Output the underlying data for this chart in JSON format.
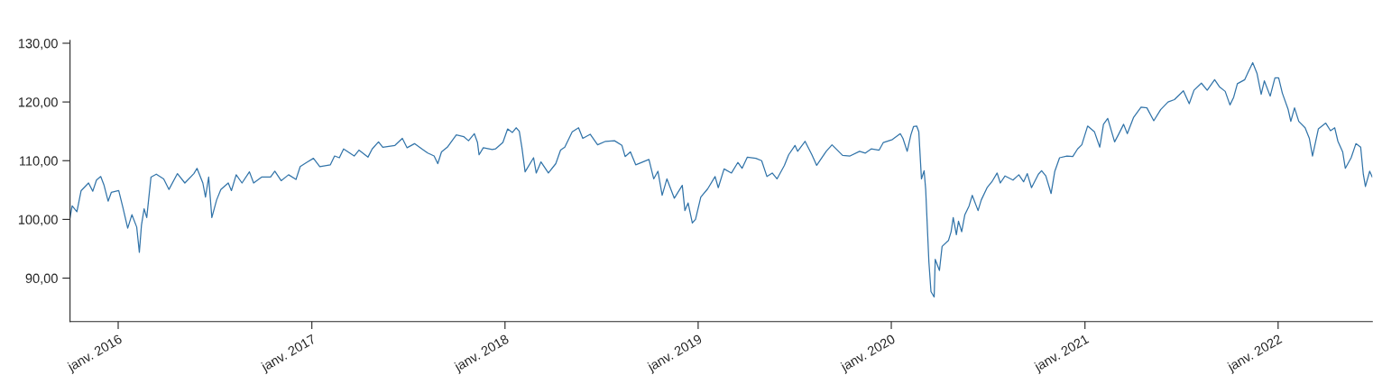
{
  "chart_data": {
    "type": "line",
    "x": [
      "2015-10-02",
      "2015-10-06",
      "2015-10-15",
      "2015-10-23",
      "2015-11-06",
      "2015-11-14",
      "2015-11-21",
      "2015-11-29",
      "2015-12-05",
      "2015-12-13",
      "2015-12-19",
      "2016-01-02",
      "2016-01-10",
      "2016-01-19",
      "2016-01-27",
      "2016-02-05",
      "2016-02-10",
      "2016-02-14",
      "2016-02-19",
      "2016-02-24",
      "2016-03-03",
      "2016-03-13",
      "2016-03-27",
      "2016-04-06",
      "2016-04-22",
      "2016-05-06",
      "2016-05-23",
      "2016-05-29",
      "2016-06-09",
      "2016-06-14",
      "2016-06-20",
      "2016-06-26",
      "2016-07-05",
      "2016-07-13",
      "2016-07-27",
      "2016-08-02",
      "2016-08-11",
      "2016-08-22",
      "2016-09-05",
      "2016-09-13",
      "2016-09-28",
      "2016-10-15",
      "2016-10-23",
      "2016-11-04",
      "2016-11-18",
      "2016-12-02",
      "2016-12-10",
      "2016-12-22",
      "2017-01-04",
      "2017-01-16",
      "2017-02-05",
      "2017-02-13",
      "2017-02-22",
      "2017-03-02",
      "2017-03-22",
      "2017-03-31",
      "2017-04-17",
      "2017-04-25",
      "2017-05-07",
      "2017-05-15",
      "2017-06-07",
      "2017-06-21",
      "2017-06-30",
      "2017-07-14",
      "2017-07-28",
      "2017-08-08",
      "2017-08-20",
      "2017-08-27",
      "2017-09-03",
      "2017-09-14",
      "2017-10-01",
      "2017-10-15",
      "2017-10-24",
      "2017-11-04",
      "2017-11-10",
      "2017-11-13",
      "2017-11-21",
      "2017-12-08",
      "2017-12-14",
      "2017-12-28",
      "2018-01-06",
      "2018-01-15",
      "2018-01-22",
      "2018-01-28",
      "2018-02-02",
      "2018-02-08",
      "2018-02-24",
      "2018-03-01",
      "2018-03-10",
      "2018-03-24",
      "2018-04-07",
      "2018-04-16",
      "2018-04-24",
      "2018-05-08",
      "2018-05-20",
      "2018-05-28",
      "2018-06-11",
      "2018-06-25",
      "2018-07-10",
      "2018-07-27",
      "2018-08-10",
      "2018-08-16",
      "2018-08-26",
      "2018-09-05",
      "2018-09-30",
      "2018-10-09",
      "2018-10-17",
      "2018-10-25",
      "2018-11-03",
      "2018-11-17",
      "2018-12-02",
      "2018-12-07",
      "2018-12-13",
      "2018-12-21",
      "2018-12-27",
      "2019-01-06",
      "2019-01-19",
      "2019-02-02",
      "2019-02-08",
      "2019-02-19",
      "2019-03-05",
      "2019-03-17",
      "2019-03-25",
      "2019-04-04",
      "2019-04-20",
      "2019-05-01",
      "2019-05-11",
      "2019-05-21",
      "2019-05-30",
      "2019-06-13",
      "2019-06-21",
      "2019-07-03",
      "2019-07-08",
      "2019-07-22",
      "2019-08-04",
      "2019-08-13",
      "2019-08-31",
      "2019-09-11",
      "2019-10-01",
      "2019-10-15",
      "2019-11-02",
      "2019-11-13",
      "2019-11-24",
      "2019-12-09",
      "2019-12-17",
      "2020-01-03",
      "2020-01-18",
      "2020-01-23",
      "2020-01-31",
      "2020-02-07",
      "2020-02-12",
      "2020-02-18",
      "2020-02-22",
      "2020-02-27",
      "2020-03-03",
      "2020-03-06",
      "2020-03-12",
      "2020-03-16",
      "2020-03-22",
      "2020-03-24",
      "2020-04-01",
      "2020-04-06",
      "2020-04-18",
      "2020-04-23",
      "2020-04-27",
      "2020-05-03",
      "2020-05-07",
      "2020-05-13",
      "2020-05-19",
      "2020-05-27",
      "2020-06-02",
      "2020-06-13",
      "2020-06-19",
      "2020-06-30",
      "2020-07-09",
      "2020-07-19",
      "2020-07-25",
      "2020-08-03",
      "2020-08-18",
      "2020-08-29",
      "2020-09-07",
      "2020-09-14",
      "2020-09-22",
      "2020-10-05",
      "2020-10-11",
      "2020-10-19",
      "2020-10-29",
      "2020-11-05",
      "2020-11-14",
      "2020-11-28",
      "2020-12-09",
      "2020-12-18",
      "2020-12-26",
      "2021-01-06",
      "2021-01-19",
      "2021-01-29",
      "2021-02-05",
      "2021-02-13",
      "2021-02-26",
      "2021-03-05",
      "2021-03-15",
      "2021-03-22",
      "2021-04-03",
      "2021-04-17",
      "2021-04-28",
      "2021-05-11",
      "2021-05-24",
      "2021-06-07",
      "2021-06-19",
      "2021-07-06",
      "2021-07-17",
      "2021-07-26",
      "2021-08-09",
      "2021-08-20",
      "2021-09-03",
      "2021-09-12",
      "2021-09-23",
      "2021-10-02",
      "2021-10-09",
      "2021-10-16",
      "2021-10-30",
      "2021-11-05",
      "2021-11-14",
      "2021-11-22",
      "2021-11-30",
      "2021-12-06",
      "2021-12-17",
      "2021-12-26",
      "2022-01-02",
      "2022-01-09",
      "2022-01-20",
      "2022-01-25",
      "2022-02-01",
      "2022-02-09",
      "2022-02-21",
      "2022-03-01",
      "2022-03-07",
      "2022-03-18",
      "2022-04-01",
      "2022-04-10",
      "2022-04-18",
      "2022-04-24",
      "2022-05-03",
      "2022-05-08",
      "2022-05-19",
      "2022-05-28",
      "2022-06-06",
      "2022-06-11",
      "2022-06-15",
      "2022-06-23",
      "2022-06-28"
    ],
    "series": [
      {
        "color": "#3274a9",
        "values": [
          100.3,
          102.3,
          101.3,
          104.9,
          106.2,
          104.8,
          106.7,
          107.3,
          105.9,
          103.1,
          104.6,
          104.9,
          102.0,
          98.5,
          100.8,
          98.7,
          94.4,
          99.0,
          101.8,
          100.3,
          107.2,
          107.7,
          106.9,
          105.1,
          107.8,
          106.2,
          107.8,
          108.7,
          106.2,
          103.8,
          107.2,
          100.3,
          103.3,
          105.1,
          106.2,
          104.9,
          107.6,
          106.2,
          108.1,
          106.2,
          107.2,
          107.2,
          108.2,
          106.6,
          107.6,
          106.8,
          109.0,
          109.7,
          110.4,
          109.0,
          109.3,
          110.8,
          110.5,
          112.0,
          110.8,
          111.8,
          110.6,
          112.0,
          113.2,
          112.3,
          112.6,
          113.8,
          112.2,
          112.9,
          112.0,
          111.3,
          110.8,
          109.5,
          111.5,
          112.3,
          114.4,
          114.1,
          113.4,
          114.6,
          113.1,
          111.0,
          112.2,
          111.9,
          112.0,
          113.1,
          115.4,
          114.8,
          115.6,
          115.0,
          112.2,
          108.1,
          110.5,
          107.9,
          109.8,
          107.9,
          109.5,
          111.8,
          112.3,
          114.9,
          115.6,
          113.8,
          114.5,
          112.7,
          113.3,
          113.4,
          112.6,
          110.7,
          111.5,
          109.3,
          110.2,
          106.9,
          108.2,
          104.1,
          106.9,
          103.6,
          105.8,
          101.5,
          102.8,
          99.4,
          100.0,
          103.8,
          105.2,
          107.3,
          105.4,
          108.6,
          107.9,
          109.7,
          108.7,
          110.6,
          110.4,
          110.0,
          107.3,
          107.9,
          106.9,
          109.2,
          111.0,
          112.6,
          111.6,
          113.3,
          111.0,
          109.2,
          111.6,
          112.7,
          110.9,
          110.8,
          111.6,
          111.3,
          112.0,
          111.8,
          113.1,
          113.6,
          114.6,
          113.8,
          111.6,
          114.4,
          115.8,
          115.9,
          114.9,
          106.9,
          108.3,
          105.1,
          92.8,
          87.7,
          86.8,
          93.2,
          91.3,
          95.4,
          96.4,
          97.9,
          100.3,
          97.4,
          99.7,
          97.9,
          100.8,
          102.3,
          104.1,
          101.5,
          103.3,
          105.4,
          106.4,
          107.9,
          106.2,
          107.4,
          106.7,
          107.6,
          106.4,
          107.8,
          105.4,
          107.7,
          108.3,
          107.4,
          104.4,
          108.2,
          110.5,
          110.8,
          110.7,
          112.0,
          112.7,
          115.9,
          114.9,
          112.3,
          116.2,
          117.2,
          113.2,
          114.4,
          116.2,
          114.6,
          117.4,
          119.1,
          119.0,
          116.8,
          118.7,
          120.0,
          120.4,
          121.9,
          119.7,
          122.0,
          123.2,
          122.0,
          123.8,
          122.6,
          121.8,
          119.5,
          120.8,
          123.1,
          123.8,
          125.0,
          126.7,
          124.9,
          121.3,
          123.6,
          121.0,
          124.1,
          124.1,
          121.5,
          118.7,
          116.7,
          119.0,
          116.7,
          115.6,
          113.8,
          110.8,
          115.4,
          116.4,
          115.1,
          115.6,
          113.3,
          111.5,
          108.7,
          110.5,
          112.9,
          112.3,
          107.7,
          105.6,
          108.2,
          107.2
        ]
      }
    ],
    "xlim": [
      "2015-10-02",
      "2022-06-28"
    ],
    "xticks": [
      {
        "value": "2016-01-01",
        "label": "janv. 2016"
      },
      {
        "value": "2017-01-01",
        "label": "janv. 2017"
      },
      {
        "value": "2018-01-01",
        "label": "janv. 2018"
      },
      {
        "value": "2019-01-01",
        "label": "janv. 2019"
      },
      {
        "value": "2020-01-01",
        "label": "janv. 2020"
      },
      {
        "value": "2021-01-01",
        "label": "janv. 2021"
      },
      {
        "value": "2022-01-01",
        "label": "janv. 2022"
      }
    ],
    "ylim": [
      82.6,
      130.5
    ],
    "yticks": [
      {
        "value": 90,
        "label": "90,00"
      },
      {
        "value": 100,
        "label": "100,00"
      },
      {
        "value": 110,
        "label": "110,00"
      },
      {
        "value": 120,
        "label": "120,00"
      },
      {
        "value": 130,
        "label": "130,00"
      }
    ],
    "grid": false,
    "marker": "none",
    "line_style": "solid"
  }
}
